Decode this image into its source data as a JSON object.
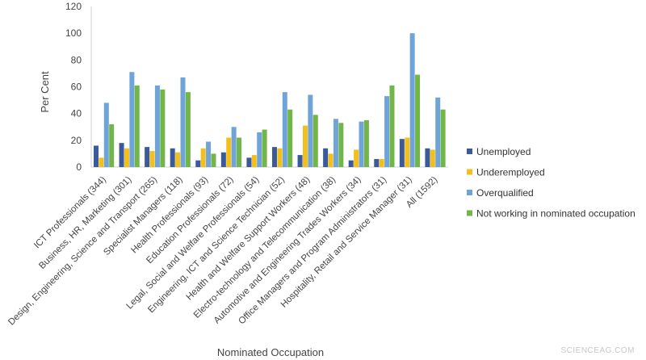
{
  "chart_data": {
    "type": "bar",
    "xlabel": "Nominated Occupation",
    "ylabel": "Per Cent",
    "ylim": [
      0,
      120
    ],
    "yticks": [
      0,
      20,
      40,
      60,
      80,
      100,
      120
    ],
    "grid": false,
    "legend_position": "right",
    "categories": [
      "ICT Professionals (344)",
      "Business, HR, Marketing (301)",
      "Design, Engineering, Science and Transport (265)",
      "Specialist Managers (118)",
      "Health Professionals (93)",
      "Education Professionals (72)",
      "Legal, Social and Welfare Professionals (54)",
      "Engineering, ICT and Science Technician (52)",
      "Health and Welfare Support Workers (48)",
      "Electro-technology and Telecommunication (38)",
      "Automotive and Engineering Trades Workers (34)",
      "Office Managers and Program Administrators (31)",
      "Hospitality, Retail and Service Manager (31)",
      "All (1592)"
    ],
    "series": [
      {
        "name": "Unemployed",
        "color": "#3a5a9a",
        "values": [
          16,
          18,
          15,
          14,
          5,
          11,
          7,
          15,
          9,
          14,
          5,
          6,
          21,
          14
        ]
      },
      {
        "name": "Underemployed",
        "color": "#f2bf1d",
        "values": [
          7,
          14,
          12,
          11,
          14,
          22,
          9,
          14,
          31,
          10,
          13,
          6,
          22,
          13
        ]
      },
      {
        "name": "Overqualified",
        "color": "#6fa4d8",
        "values": [
          48,
          71,
          61,
          67,
          19,
          30,
          26,
          56,
          54,
          36,
          34,
          53,
          100,
          52
        ]
      },
      {
        "name": "Not working in nominated occupation",
        "color": "#72b548",
        "values": [
          32,
          61,
          58,
          56,
          10,
          22,
          28,
          43,
          39,
          33,
          35,
          61,
          69,
          43
        ]
      }
    ]
  },
  "watermark": "SCIENCEAG.COM"
}
